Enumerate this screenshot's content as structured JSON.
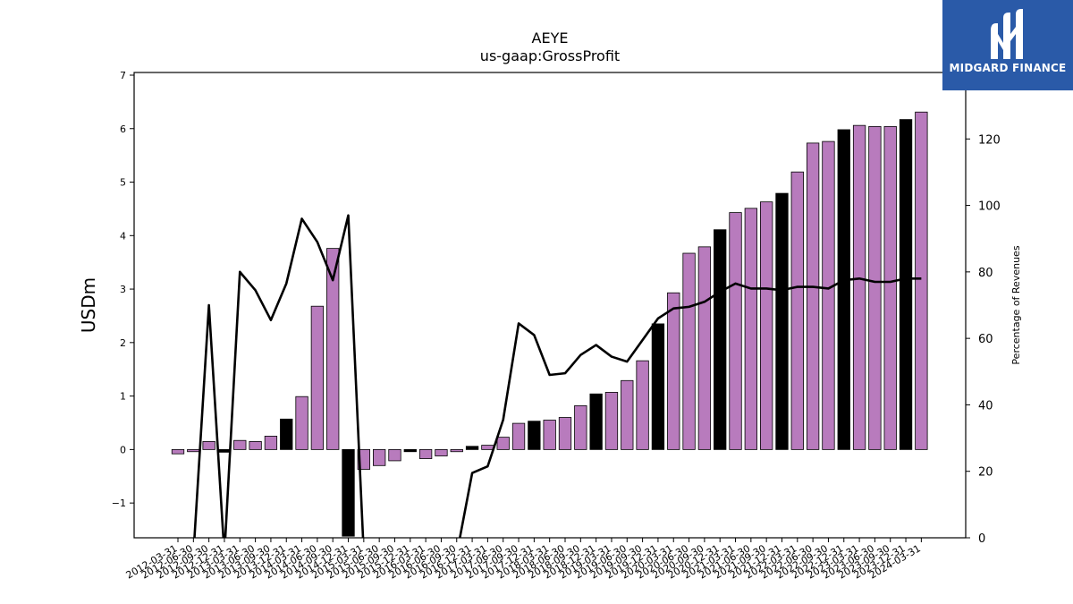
{
  "logo": {
    "text": "MIDGARD FINANCE",
    "icon": "midgard-m-icon"
  },
  "chart_data": {
    "type": "bar",
    "title": "AEYE",
    "subtitle": "us-gaap:GrossProfit",
    "ylabel": "USDm",
    "y2label": "Percentage of Revenues",
    "ylim": [
      -1.65,
      7.05
    ],
    "y2lim": [
      0,
      140
    ],
    "yticks": [
      -1,
      0,
      1,
      2,
      3,
      4,
      5,
      6,
      7
    ],
    "y2ticks": [
      0,
      20,
      40,
      60,
      80,
      100,
      120
    ],
    "categories": [
      "2012-03-31",
      "2012-06-30",
      "2012-09-30",
      "2012-12-31",
      "2013-03-31",
      "2013-06-30",
      "2013-09-30",
      "2013-12-31",
      "2014-03-31",
      "2014-06-30",
      "2014-09-30",
      "2014-12-31",
      "2015-03-31",
      "2015-06-30",
      "2015-09-30",
      "2015-12-31",
      "2016-03-31",
      "2016-06-30",
      "2016-09-30",
      "2016-12-31",
      "2017-03-31",
      "2017-06-30",
      "2017-09-30",
      "2017-12-31",
      "2018-03-31",
      "2018-06-30",
      "2018-09-30",
      "2018-12-31",
      "2019-03-31",
      "2019-06-30",
      "2019-09-30",
      "2019-12-31",
      "2020-03-31",
      "2020-06-30",
      "2020-09-30",
      "2020-12-31",
      "2021-03-31",
      "2021-06-30",
      "2021-09-30",
      "2021-12-31",
      "2022-03-31",
      "2022-06-30",
      "2022-09-30",
      "2022-12-31",
      "2023-03-31",
      "2023-06-30",
      "2023-09-30",
      "2023-12-31",
      "2024-03-31"
    ],
    "values": [
      -0.08,
      -0.04,
      0.15,
      -0.05,
      0.17,
      0.15,
      0.25,
      0.57,
      0.99,
      2.68,
      3.76,
      -1.62,
      -0.37,
      -0.3,
      -0.21,
      -0.04,
      -0.17,
      -0.12,
      -0.04,
      0.06,
      0.08,
      0.23,
      0.49,
      0.53,
      0.55,
      0.6,
      0.82,
      1.04,
      1.07,
      1.29,
      1.66,
      2.35,
      2.93,
      3.67,
      3.79,
      4.11,
      4.43,
      4.51,
      4.63,
      4.79,
      5.19,
      5.73,
      5.76,
      5.98,
      6.06,
      6.04,
      6.04,
      6.17,
      6.31
    ],
    "highlight": [
      false,
      false,
      false,
      true,
      false,
      false,
      false,
      true,
      false,
      false,
      false,
      true,
      false,
      false,
      false,
      true,
      false,
      false,
      false,
      true,
      false,
      false,
      false,
      true,
      false,
      false,
      false,
      true,
      false,
      false,
      false,
      true,
      false,
      false,
      false,
      true,
      false,
      false,
      false,
      true,
      false,
      false,
      false,
      true,
      false,
      false,
      false,
      true,
      false
    ],
    "series": [
      {
        "name": "Percentage of Revenues",
        "axis": "right",
        "values": [
          -5,
          -5,
          70,
          -5,
          80,
          74.5,
          65.5,
          76.5,
          96,
          89,
          77.5,
          97,
          -5,
          -5,
          -5,
          -5,
          -5,
          -5,
          -5,
          19.5,
          21.5,
          35.5,
          64.5,
          61,
          49,
          49.5,
          55,
          58,
          54.5,
          53,
          59.5,
          66,
          69,
          69.5,
          71,
          74,
          76.5,
          75,
          75,
          74.5,
          75.5,
          75.5,
          75,
          77.5,
          78,
          77,
          77,
          78,
          78
        ]
      }
    ],
    "colors": {
      "bar": "#b87bbd",
      "highlight_bar": "#000000",
      "line": "#000000"
    },
    "grid": false
  }
}
